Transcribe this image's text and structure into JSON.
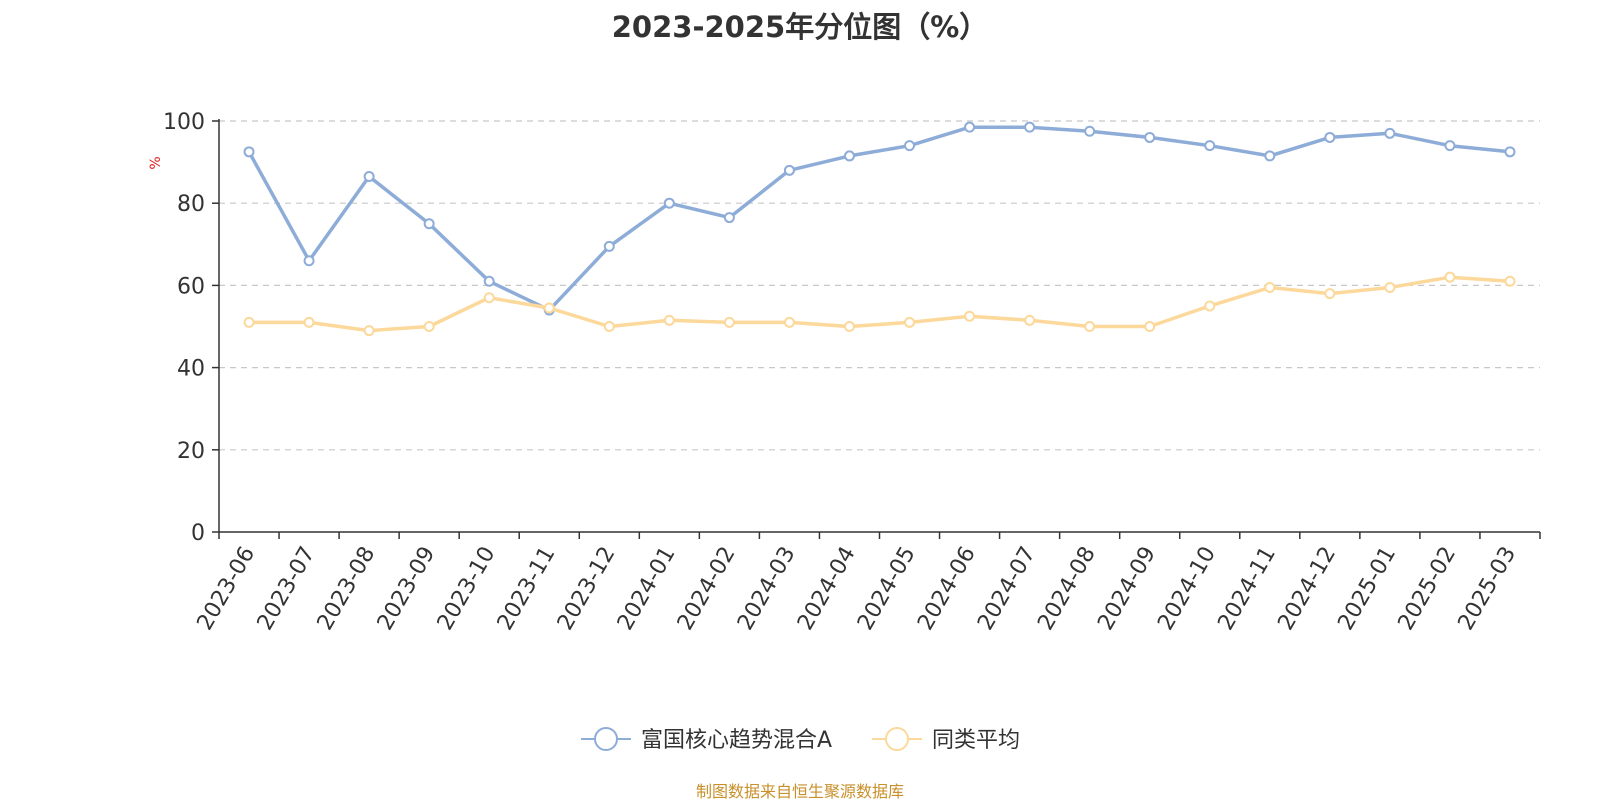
{
  "title": "2023-2025年分位图（%）",
  "source": "制图数据来自恒生聚源数据库",
  "colors": {
    "series_1": "#8eacd8",
    "series_2": "#fcd89a",
    "grid": "#c8c8c8",
    "axis": "#333333",
    "unit": "#e02020",
    "source": "#c8902a"
  },
  "chart_data": {
    "type": "line",
    "title": "2023-2025年分位图（%）",
    "ylabel": "%",
    "xlabel": "",
    "ylim": [
      0,
      100
    ],
    "yticks": [
      0,
      20,
      40,
      60,
      80,
      100
    ],
    "grid": true,
    "legend_position": "bottom-center",
    "categories": [
      "2023-06",
      "2023-07",
      "2023-08",
      "2023-09",
      "2023-10",
      "2023-11",
      "2023-12",
      "2024-01",
      "2024-02",
      "2024-03",
      "2024-04",
      "2024-05",
      "2024-06",
      "2024-07",
      "2024-08",
      "2024-09",
      "2024-10",
      "2024-11",
      "2024-12",
      "2025-01",
      "2025-02",
      "2025-03"
    ],
    "series": [
      {
        "name": "富国核心趋势混合A",
        "values": [
          92.5,
          66,
          86.5,
          75,
          61,
          54,
          69.5,
          80,
          76.5,
          88,
          91.5,
          94,
          98.5,
          98.5,
          97.5,
          96,
          94,
          91.5,
          96,
          97,
          94,
          92.5
        ]
      },
      {
        "name": "同类平均",
        "values": [
          51,
          51,
          49,
          50,
          57,
          54.5,
          50,
          51.5,
          51,
          51,
          50,
          51,
          52.5,
          51.5,
          50,
          50,
          55,
          59.5,
          58,
          59.5,
          62,
          61
        ]
      }
    ]
  }
}
